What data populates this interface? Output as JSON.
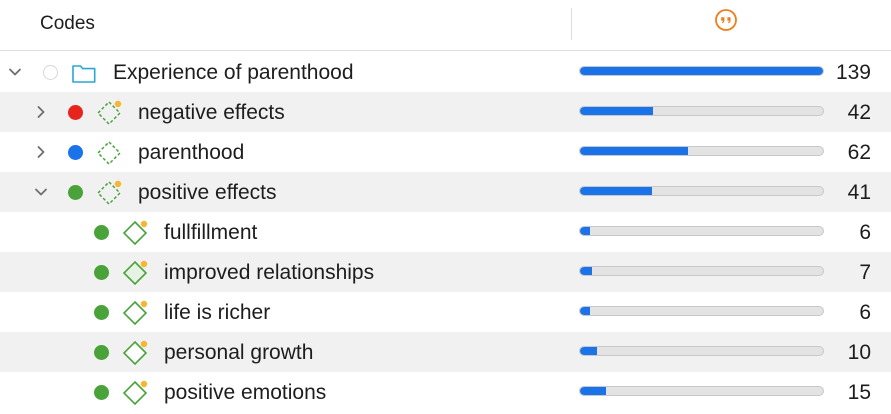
{
  "header": {
    "codes_title": "Codes",
    "quotations_icon": "quotation-icon",
    "accent_color": "#f07d1d"
  },
  "max_count": 139,
  "rows": [
    {
      "label": "Experience of parenthood",
      "count": "139",
      "value": 139,
      "color": null,
      "icon": "folder-icon",
      "expanded": true,
      "alt": false
    },
    {
      "label": "negative effects",
      "count": "42",
      "value": 42,
      "color": "#e8251d",
      "icon": "code-group-icon",
      "expanded": false,
      "alt": true
    },
    {
      "label": "parenthood",
      "count": "62",
      "value": 62,
      "color": "#1a73e8",
      "icon": "code-group-icon",
      "expanded": false,
      "alt": false
    },
    {
      "label": "positive effects",
      "count": "41",
      "value": 41,
      "color": "#4aa33a",
      "icon": "code-group-icon",
      "expanded": true,
      "alt": true
    },
    {
      "label": "fullfillment",
      "count": "6",
      "value": 6,
      "color": "#4aa33a",
      "icon": "code-icon",
      "alt": false
    },
    {
      "label": "improved relationships",
      "count": "7",
      "value": 7,
      "color": "#4aa33a",
      "icon": "code-icon",
      "alt": true
    },
    {
      "label": "life is richer",
      "count": "6",
      "value": 6,
      "color": "#4aa33a",
      "icon": "code-icon",
      "alt": false
    },
    {
      "label": "personal growth",
      "count": "10",
      "value": 10,
      "color": "#4aa33a",
      "icon": "code-icon",
      "alt": true
    },
    {
      "label": "positive emotions",
      "count": "15",
      "value": 15,
      "color": "#4aa33a",
      "icon": "code-icon",
      "alt": false
    }
  ]
}
